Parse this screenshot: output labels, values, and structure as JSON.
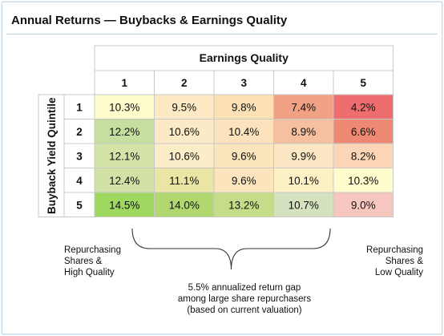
{
  "title": "Annual Returns — Buybacks & Earnings Quality",
  "chart_data": {
    "type": "heatmap",
    "title": "Annual Returns — Buybacks & Earnings Quality",
    "xlabel": "Earnings Quality",
    "ylabel": "Buyback Yield Quintile",
    "x_categories": [
      "1",
      "2",
      "3",
      "4",
      "5"
    ],
    "y_categories": [
      "1",
      "2",
      "3",
      "4",
      "5"
    ],
    "cell_labels": [
      [
        "10.3%",
        "9.5%",
        "9.8%",
        "7.4%",
        "4.2%"
      ],
      [
        "12.2%",
        "10.6%",
        "10.4%",
        "8.9%",
        "6.6%"
      ],
      [
        "12.1%",
        "10.6%",
        "9.6%",
        "9.9%",
        "8.2%"
      ],
      [
        "12.4%",
        "11.1%",
        "9.6%",
        "10.1%",
        "10.3%"
      ],
      [
        "14.5%",
        "14.0%",
        "13.2%",
        "10.7%",
        "9.0%"
      ]
    ],
    "values": [
      [
        10.3,
        9.5,
        9.8,
        7.4,
        4.2
      ],
      [
        12.2,
        10.6,
        10.4,
        8.9,
        6.6
      ],
      [
        12.1,
        10.6,
        9.6,
        9.9,
        8.2
      ],
      [
        12.4,
        11.1,
        9.6,
        10.1,
        10.3
      ],
      [
        14.5,
        14.0,
        13.2,
        10.7,
        9.0
      ]
    ],
    "cell_colors": [
      [
        "#fefbcc",
        "#fde9c4",
        "#fbe1b5",
        "#f1a284",
        "#ee6e6f"
      ],
      [
        "#c6de9f",
        "#fceac6",
        "#fce3bd",
        "#f5bfa0",
        "#ee8a73"
      ],
      [
        "#d4e4a9",
        "#fcedc9",
        "#fbe5bc",
        "#fbe7c4",
        "#fbd5b6"
      ],
      [
        "#d2e1a5",
        "#eae4a5",
        "#fce4bd",
        "#fdf0c5",
        "#fefbcc"
      ],
      [
        "#9ed860",
        "#b1d86f",
        "#c5dd88",
        "#d5e2bf",
        "#f6c6bf"
      ]
    ],
    "annotations": {
      "left": [
        "Repurchasing",
        "Shares &",
        "High Quality"
      ],
      "right": [
        "Repurchasing",
        "Shares &",
        "Low Quality"
      ],
      "center": [
        "5.5% annualized return gap",
        "among large share repurchasers",
        "(based on current valuation)"
      ]
    }
  }
}
